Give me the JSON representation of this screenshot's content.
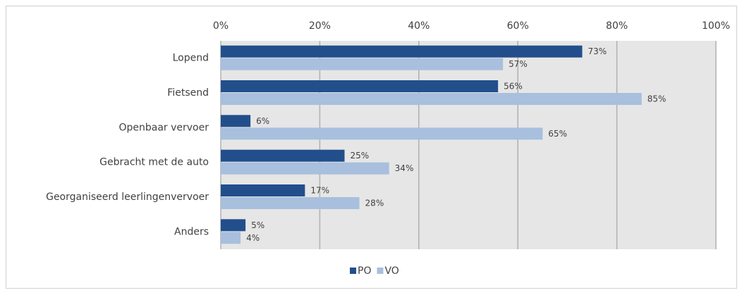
{
  "chart_data": {
    "type": "barh",
    "categories": [
      "Lopend",
      "Fietsend",
      "Openbaar vervoer",
      "Gebracht met de auto",
      "Georganiseerd leerlingenvervoer",
      "Anders"
    ],
    "series": [
      {
        "name": "PO",
        "color": "#224f8b",
        "values": [
          73,
          56,
          6,
          25,
          17,
          5
        ],
        "value_labels": [
          "73%",
          "56%",
          "6%",
          "25%",
          "17%",
          "5%"
        ]
      },
      {
        "name": "VO",
        "color": "#a8bfde",
        "values": [
          57,
          85,
          65,
          34,
          28,
          4
        ],
        "value_labels": [
          "57%",
          "85%",
          "65%",
          "34%",
          "28%",
          "4%"
        ]
      }
    ],
    "xlim": [
      0,
      100
    ],
    "xticks": [
      {
        "value": 0,
        "label": "0%"
      },
      {
        "value": 20,
        "label": "20%"
      },
      {
        "value": 40,
        "label": "40%"
      },
      {
        "value": 60,
        "label": "60%"
      },
      {
        "value": 80,
        "label": "80%"
      },
      {
        "value": 100,
        "label": "100%"
      }
    ],
    "grid": true,
    "legend": "bottom"
  }
}
